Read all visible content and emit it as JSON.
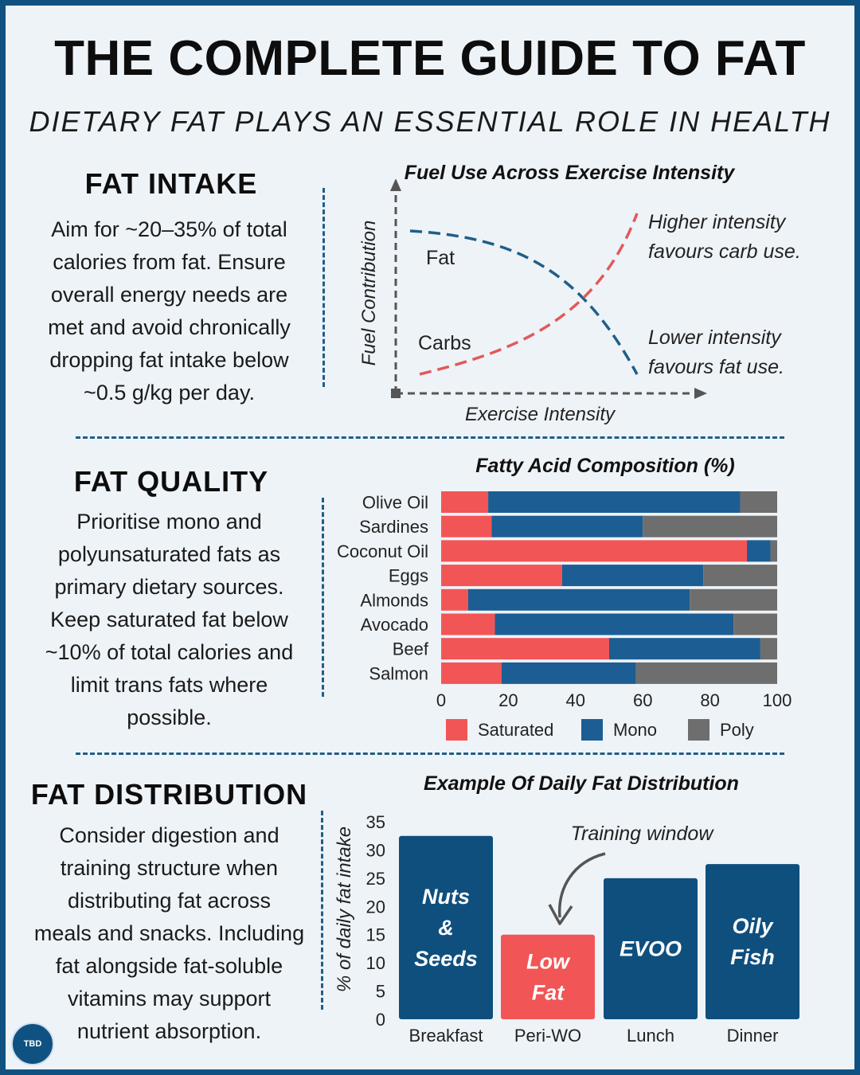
{
  "title": "THE COMPLETE GUIDE TO FAT",
  "subtitle": "DIETARY FAT PLAYS AN ESSENTIAL ROLE IN HEALTH",
  "intake": {
    "heading": "FAT INTAKE",
    "lines": [
      "Aim for ~20–35% of total",
      "calories from fat. Ensure",
      "overall energy needs are",
      "met and avoid chronically",
      "dropping fat intake below",
      "~0.5 g/kg per day."
    ]
  },
  "quality": {
    "heading": "FAT QUALITY",
    "lines": [
      "Prioritise mono and",
      "polyunsaturated fats as",
      "primary dietary sources.",
      "Keep saturated fat below",
      "~10% of total calories and",
      "limit trans fats where",
      "possible."
    ]
  },
  "distribution": {
    "heading": "FAT DISTRIBUTION",
    "lines": [
      "Consider digestion and",
      "training structure when",
      "distributing fat across",
      "meals and snacks. Including",
      "fat alongside fat-soluble",
      "vitamins may support",
      "nutrient absorption."
    ]
  },
  "logo_text": "TBD",
  "chart_data": [
    {
      "type": "line",
      "title": "Fuel Use Across Exercise Intensity",
      "xlabel": "Exercise Intensity",
      "ylabel": "Fuel Contribution",
      "series": [
        {
          "name": "Fat",
          "color": "#1f5f86",
          "trend": "decreasing"
        },
        {
          "name": "Carbs",
          "color": "#e05a5a",
          "trend": "increasing"
        }
      ],
      "annotations": [
        {
          "lines": [
            "Higher intensity",
            "favours carb use."
          ]
        },
        {
          "lines": [
            "Lower intensity",
            "favours fat use."
          ]
        }
      ]
    },
    {
      "type": "bar",
      "orientation": "horizontal",
      "stacked": true,
      "title": "Fatty Acid Composition (%)",
      "categories": [
        "Olive Oil",
        "Sardines",
        "Coconut Oil",
        "Eggs",
        "Almonds",
        "Avocado",
        "Beef",
        "Salmon"
      ],
      "series": [
        {
          "name": "Saturated",
          "color": "#f25555",
          "values": [
            14,
            15,
            91,
            36,
            8,
            16,
            50,
            18
          ]
        },
        {
          "name": "Mono",
          "color": "#1c5d93",
          "values": [
            75,
            45,
            7,
            42,
            66,
            71,
            45,
            40
          ]
        },
        {
          "name": "Poly",
          "color": "#6e6e6e",
          "values": [
            11,
            40,
            2,
            22,
            26,
            13,
            5,
            42
          ]
        }
      ],
      "xlim": [
        0,
        100
      ],
      "xticks": [
        "0",
        "20",
        "40",
        "60",
        "80",
        "100"
      ],
      "legend": "bottom"
    },
    {
      "type": "bar",
      "title": "Example Of Daily Fat Distribution",
      "ylabel": "% of daily fat intake",
      "categories": [
        "Breakfast",
        "Peri-WO",
        "Lunch",
        "Dinner"
      ],
      "values": [
        32.5,
        15,
        25,
        27.5
      ],
      "bar_labels": [
        [
          "Nuts",
          "&",
          "Seeds"
        ],
        [
          "Low",
          "Fat"
        ],
        [
          "EVOO"
        ],
        [
          "Oily",
          "Fish"
        ]
      ],
      "colors": [
        "#0f4f7e",
        "#f25555",
        "#0f4f7e",
        "#0f4f7e"
      ],
      "ylim": [
        0,
        35
      ],
      "yticks": [
        "0",
        "5",
        "10",
        "15",
        "20",
        "25",
        "30",
        "35"
      ],
      "annotation": "Training window"
    }
  ]
}
